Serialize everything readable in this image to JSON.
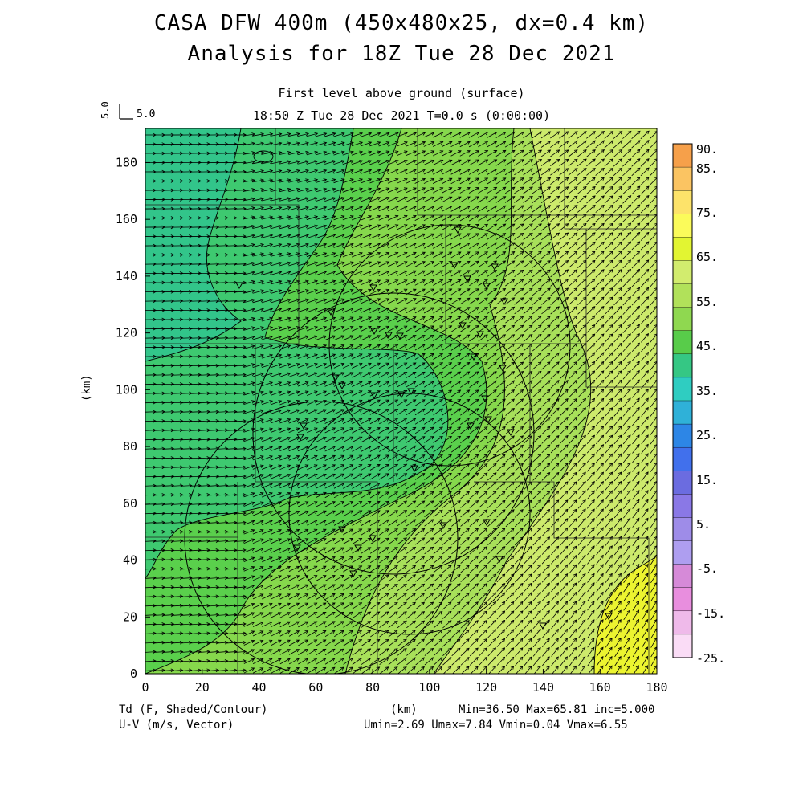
{
  "title_line1": "CASA DFW 400m (450x480x25, dx=0.4 km)",
  "title_line2": "Analysis for 18Z Tue 28 Dec 2021",
  "subtitle_level": "First level above ground (surface)",
  "subtitle_time": "18:50 Z Tue 28 Dec 2021    T=0.0 s (0:00:00)",
  "ref_vector_label": "5.0",
  "ref_vector_axis_label": "5.0",
  "footer_left_1": "Td (F, Shaded/Contour)",
  "footer_left_2": "U-V (m/s, Vector)",
  "footer_center": "(km)",
  "footer_right_1": "Min=36.50 Max=65.81 inc=5.000",
  "footer_right_2": "Umin=2.69 Umax=7.84 Vmin=0.04 Vmax=6.55",
  "y_axis_label": "(km)",
  "x_ticks": [
    "0",
    "20",
    "40",
    "60",
    "80",
    "100",
    "120",
    "140",
    "160",
    "180"
  ],
  "y_ticks": [
    "0",
    "20",
    "40",
    "60",
    "80",
    "100",
    "120",
    "140",
    "160",
    "180"
  ],
  "colorbar": {
    "labels": [
      "90.",
      "85.",
      "75.",
      "65.",
      "55.",
      "45.",
      "35.",
      "25.",
      "15.",
      "5.",
      "-5.",
      "-15.",
      "-25."
    ],
    "colors": [
      "#f6a04a",
      "#fbc462",
      "#fde36a",
      "#fbfb5a",
      "#e2f532",
      "#d2ec6e",
      "#b1e15a",
      "#8fd850",
      "#58cc4a",
      "#35c784",
      "#2fcdc1",
      "#2fb1d8",
      "#2d86e6",
      "#4170ec",
      "#6b6ce0",
      "#8a78e6",
      "#9e8ce8",
      "#ae9ef0",
      "#d68ad8",
      "#e88ede",
      "#efbaea",
      "#fadcf6"
    ]
  },
  "field_colors": {
    "c36": "#32c58a",
    "c40": "#3ec970",
    "c45": "#5ad04c",
    "c50": "#86d84c",
    "c55": "#a8e05a",
    "c60": "#cdea6c",
    "c65": "#ecf430"
  },
  "chart_data": {
    "type": "heatmap",
    "title": "Td (F, Shaded/Contour)",
    "xlabel": "(km)",
    "ylabel": "(km)",
    "xlim": [
      0,
      180
    ],
    "ylim": [
      0,
      192
    ],
    "min": 36.5,
    "max": 65.81,
    "inc": 5.0,
    "contour_levels": [
      40,
      45,
      50,
      55,
      60,
      65
    ],
    "vector_stats": {
      "umin": 2.69,
      "umax": 7.84,
      "vmin": 0.04,
      "vmax": 6.55
    },
    "wind_direction": "westerly in west, southwesterly in east"
  }
}
